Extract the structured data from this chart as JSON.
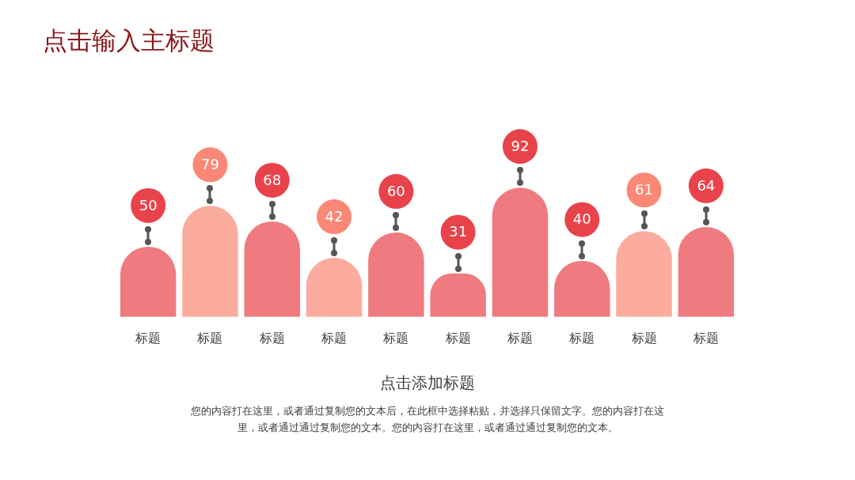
{
  "chart_data": {
    "type": "bar",
    "title": "点击输入主标题",
    "categories": [
      "标题",
      "标题",
      "标题",
      "标题",
      "标题",
      "标题",
      "标题",
      "标题",
      "标题",
      "标题"
    ],
    "values": [
      50,
      79,
      68,
      42,
      60,
      31,
      92,
      40,
      61,
      64
    ],
    "colors": [
      "#e8434a",
      "#fb8876",
      "#e8434a",
      "#fb8876",
      "#e8434a",
      "#e8434a",
      "#e8434a",
      "#e8434a",
      "#fb8876",
      "#e8434a"
    ],
    "data_labels": true,
    "annotations": [
      "点击添加标题",
      "您的内容打在这里，或者通过复制您的文本后，在此框中选择粘贴，并选择只保留文字。您的内容打在这里，或者通过通过复制您的文本。您的内容打在这里，或者通过通过复制您的文本。"
    ]
  }
}
